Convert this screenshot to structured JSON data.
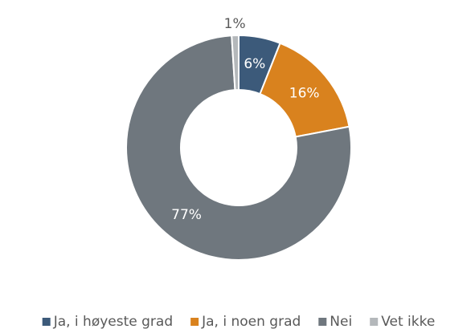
{
  "chart_data": {
    "type": "donut",
    "categories": [
      "Ja, i høyeste grad",
      "Ja, i noen grad",
      "Nei",
      "Vet ikke"
    ],
    "values": [
      6,
      16,
      77,
      1
    ],
    "value_labels": [
      "6%",
      "16%",
      "77%",
      "1%"
    ],
    "colors": [
      "#3c5a7a",
      "#d9821e",
      "#6f777e",
      "#b4b8bb"
    ],
    "legend": "bottom"
  }
}
